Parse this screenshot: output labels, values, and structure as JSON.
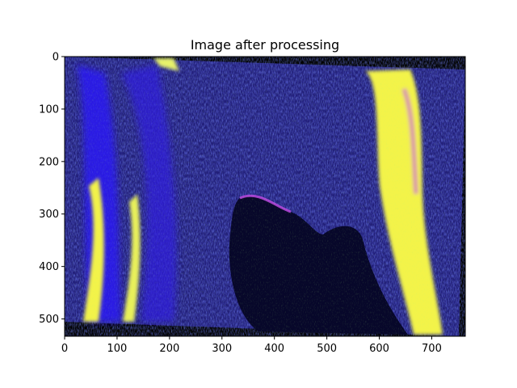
{
  "chart_data": {
    "type": "heatmap",
    "title": "Image after processing",
    "xlabel": "",
    "ylabel": "",
    "xlim": [
      0,
      764
    ],
    "ylim": [
      533,
      0
    ],
    "x_ticks": [
      0,
      100,
      200,
      300,
      400,
      500,
      600,
      700
    ],
    "y_ticks": [
      0,
      100,
      200,
      300,
      400,
      500
    ],
    "grid": false,
    "legend": "none",
    "colors": {
      "background": "#000000",
      "texture": "#1c1f70",
      "blue": "#2a1cf0",
      "green": "#74d21c",
      "yellow": "#f3f34a",
      "magenta": "#d05ae8",
      "dark_blob": "#07072a"
    }
  }
}
